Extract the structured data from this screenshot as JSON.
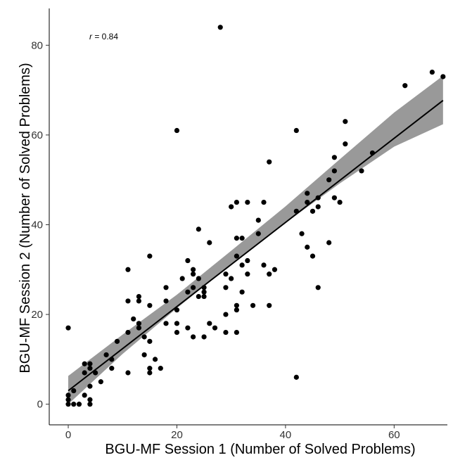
{
  "chart_data": {
    "type": "scatter",
    "title": "",
    "xlabel": "BGU-MF Session 1 (Number of Solved Problems)",
    "ylabel": "BGU-MF Session 2 (Number of Solved Problems)",
    "xlim": [
      -3.5,
      69.8
    ],
    "ylim": [
      -4.6,
      88.2
    ],
    "x_ticks": [
      0,
      20,
      40,
      60
    ],
    "y_ticks": [
      0,
      20,
      40,
      60,
      80
    ],
    "grid": false,
    "legend": "none",
    "annotation": {
      "r_symbol": "r",
      "r_value": " = 0.84"
    },
    "regression": {
      "x_start": 0,
      "x_end": 69,
      "y_start": 3,
      "y_end": 67.7,
      "band": [
        {
          "x": 0,
          "lo": 0,
          "hi": 6.3
        },
        {
          "x": 10,
          "lo": 11.2,
          "hi": 15.5
        },
        {
          "x": 20,
          "lo": 21.4,
          "hi": 24.4
        },
        {
          "x": 30,
          "lo": 31.2,
          "hi": 34.2
        },
        {
          "x": 40,
          "lo": 40.4,
          "hi": 44.1
        },
        {
          "x": 50,
          "lo": 49.2,
          "hi": 54.6
        },
        {
          "x": 60,
          "lo": 57.4,
          "hi": 65
        },
        {
          "x": 69,
          "lo": 62.4,
          "hi": 73.2
        }
      ]
    },
    "points": [
      [
        0,
        17
      ],
      [
        0,
        0
      ],
      [
        0,
        1
      ],
      [
        0,
        2
      ],
      [
        1,
        0
      ],
      [
        1,
        3
      ],
      [
        2,
        0
      ],
      [
        3,
        2
      ],
      [
        3,
        7
      ],
      [
        3,
        9
      ],
      [
        4,
        0
      ],
      [
        4,
        1
      ],
      [
        4,
        4
      ],
      [
        4,
        8
      ],
      [
        4,
        9
      ],
      [
        5,
        7
      ],
      [
        6,
        5
      ],
      [
        7,
        11
      ],
      [
        8,
        8
      ],
      [
        8,
        10
      ],
      [
        9,
        14
      ],
      [
        11,
        30
      ],
      [
        11,
        23
      ],
      [
        11,
        16
      ],
      [
        11,
        7
      ],
      [
        12,
        19
      ],
      [
        13,
        24
      ],
      [
        13,
        23
      ],
      [
        13,
        18
      ],
      [
        13,
        17
      ],
      [
        14,
        15
      ],
      [
        14,
        11
      ],
      [
        15,
        33
      ],
      [
        15,
        22
      ],
      [
        15,
        14
      ],
      [
        15,
        8
      ],
      [
        15,
        7
      ],
      [
        16,
        10
      ],
      [
        17,
        8
      ],
      [
        18,
        26
      ],
      [
        18,
        23
      ],
      [
        18,
        18
      ],
      [
        20,
        61
      ],
      [
        20,
        21
      ],
      [
        20,
        18
      ],
      [
        20,
        16
      ],
      [
        21,
        28
      ],
      [
        22,
        32
      ],
      [
        22,
        25
      ],
      [
        22,
        17
      ],
      [
        23,
        30
      ],
      [
        23,
        29
      ],
      [
        23,
        26
      ],
      [
        23,
        15
      ],
      [
        24,
        39
      ],
      [
        24,
        28
      ],
      [
        24,
        24
      ],
      [
        25,
        26
      ],
      [
        25,
        25
      ],
      [
        25,
        24
      ],
      [
        25,
        15
      ],
      [
        26,
        36
      ],
      [
        26,
        18
      ],
      [
        27,
        17
      ],
      [
        28,
        84
      ],
      [
        29,
        29
      ],
      [
        29,
        26
      ],
      [
        29,
        20
      ],
      [
        29,
        16
      ],
      [
        30,
        44
      ],
      [
        30,
        28
      ],
      [
        31,
        45
      ],
      [
        31,
        33
      ],
      [
        31,
        37
      ],
      [
        31,
        22
      ],
      [
        31,
        21
      ],
      [
        31,
        16
      ],
      [
        32,
        37
      ],
      [
        32,
        31
      ],
      [
        32,
        25
      ],
      [
        33,
        45
      ],
      [
        33,
        32
      ],
      [
        33,
        29
      ],
      [
        34,
        22
      ],
      [
        35,
        41
      ],
      [
        35,
        38
      ],
      [
        36,
        45
      ],
      [
        36,
        31
      ],
      [
        37,
        54
      ],
      [
        37,
        29
      ],
      [
        37,
        22
      ],
      [
        38,
        30
      ],
      [
        42,
        61
      ],
      [
        42,
        43
      ],
      [
        42,
        6
      ],
      [
        43,
        38
      ],
      [
        44,
        47
      ],
      [
        44,
        45
      ],
      [
        44,
        35
      ],
      [
        45,
        43
      ],
      [
        45,
        33
      ],
      [
        46,
        46
      ],
      [
        46,
        44
      ],
      [
        46,
        26
      ],
      [
        48,
        50
      ],
      [
        48,
        36
      ],
      [
        49,
        55
      ],
      [
        49,
        52
      ],
      [
        49,
        46
      ],
      [
        50,
        45
      ],
      [
        51,
        63
      ],
      [
        51,
        58
      ],
      [
        54,
        52
      ],
      [
        56,
        56
      ],
      [
        62,
        71
      ],
      [
        67,
        74
      ],
      [
        69,
        73
      ]
    ]
  }
}
